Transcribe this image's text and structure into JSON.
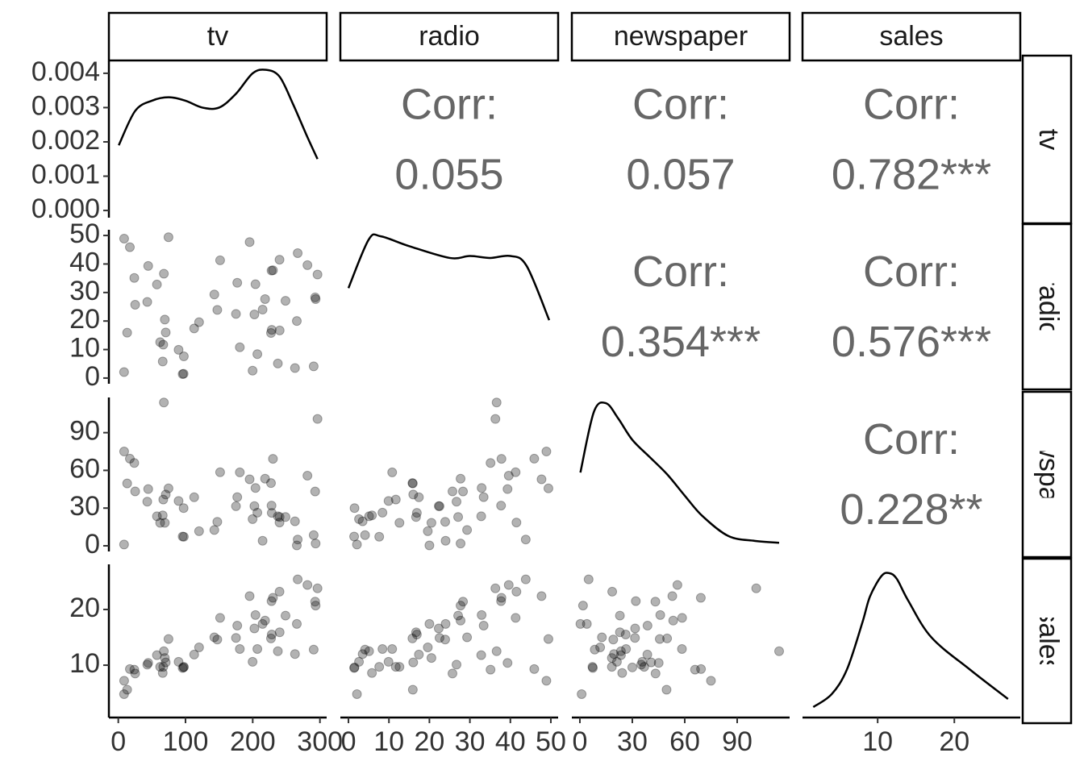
{
  "chart_data": {
    "type": "pairs",
    "variables": [
      "tv",
      "radio",
      "newspaper",
      "sales"
    ],
    "xlims": [
      [
        -14,
        310
      ],
      [
        -2,
        51.8
      ],
      [
        -4.6,
        120
      ],
      [
        0.2,
        28.6
      ]
    ],
    "xticks": [
      [
        0,
        100,
        200,
        300
      ],
      [
        0,
        10,
        20,
        30,
        40,
        50
      ],
      [
        0,
        30,
        60,
        90
      ],
      [
        10,
        20
      ]
    ],
    "ylims": [
      [
        -0.00021,
        0.00435
      ],
      [
        -2,
        52
      ],
      [
        -4.5,
        118
      ],
      [
        0.6,
        28.1
      ]
    ],
    "yticks": [
      [
        {
          "value": 0,
          "label": "0.000"
        },
        {
          "value": 0.001,
          "label": "0.001"
        },
        {
          "value": 0.002,
          "label": "0.002"
        },
        {
          "value": 0.003,
          "label": "0.003"
        },
        {
          "value": 0.004,
          "label": "0.004"
        }
      ],
      [
        0,
        10,
        20,
        30,
        40,
        50
      ],
      [
        0,
        30,
        60,
        90
      ],
      [
        10,
        20
      ]
    ],
    "columns": [
      [
        230.1,
        44.5,
        17.2,
        151.5,
        180.8,
        8.7,
        57.5,
        120.2,
        8.6,
        199.8,
        66.1,
        214.7,
        23.8,
        97.5,
        204.1,
        195.4,
        67.8,
        281.4,
        69.2,
        147.3,
        218.4,
        237.4,
        13.2,
        228.3,
        62.3,
        262.9,
        142.9,
        240.1,
        248.8,
        70.6,
        292.9,
        112.9,
        97.2,
        265.6,
        95.7,
        290.7,
        266.9,
        74.7,
        43.1,
        228,
        202.5,
        177,
        293.6,
        206.9,
        25.1,
        175.1,
        89.7,
        239.9,
        227.2,
        66.9,
        296.4
      ],
      [
        37.8,
        39.3,
        45.9,
        41.3,
        10.8,
        48.9,
        32.8,
        19.6,
        2.1,
        2.6,
        5.8,
        24,
        35.1,
        7.6,
        32.9,
        47.7,
        36.6,
        39.6,
        20.5,
        23.9,
        27.7,
        5.1,
        15.9,
        16.9,
        12.6,
        3.5,
        29.3,
        16.7,
        27.1,
        16,
        28.3,
        17.4,
        1.5,
        20,
        1.4,
        4.1,
        43.8,
        49.4,
        26.7,
        37.7,
        22.3,
        33.4,
        27.7,
        8.4,
        25.7,
        22.5,
        9.9,
        41.5,
        15.8,
        11.7,
        36.3
      ],
      [
        69.2,
        45.1,
        69.3,
        58.5,
        58.4,
        75,
        23.5,
        11.6,
        1,
        21.2,
        24.2,
        4,
        65.9,
        7.2,
        46,
        52.9,
        114,
        55.8,
        18.3,
        19.1,
        53.4,
        23.5,
        49.6,
        26.2,
        18.3,
        19.5,
        12.6,
        22.9,
        22.9,
        40.8,
        43.2,
        38.6,
        30,
        0.3,
        7.4,
        8.5,
        5,
        45.7,
        35.1,
        32,
        31.6,
        38.7,
        1.8,
        26.4,
        43.3,
        31.5,
        35.7,
        18.5,
        49.9,
        36.8,
        100.9
      ],
      [
        22.1,
        10.4,
        9.3,
        18.5,
        12.9,
        7.2,
        11.8,
        13.2,
        4.8,
        10.6,
        8.6,
        17.4,
        9.2,
        9.7,
        19,
        22.4,
        12.5,
        24.4,
        11.3,
        14.6,
        18,
        12.5,
        5.6,
        15.5,
        9.7,
        12,
        15,
        15.9,
        18.9,
        10.5,
        21.4,
        11.9,
        9.6,
        17.4,
        9.5,
        12.8,
        25.4,
        14.7,
        10.1,
        21.5,
        16.6,
        17.1,
        20.7,
        12.9,
        8.5,
        14.9,
        10.6,
        23.2,
        14.8,
        9.7,
        23.8
      ]
    ],
    "densities": [
      {
        "x": [
          0.7,
          25,
          50,
          75,
          100,
          125,
          150,
          175,
          200,
          220,
          240,
          260,
          280,
          296.4
        ],
        "y": [
          0.0019,
          0.0029,
          0.0032,
          0.0033,
          0.0032,
          0.003,
          0.003,
          0.0034,
          0.004,
          0.0041,
          0.0039,
          0.0031,
          0.0022,
          0.0015
        ]
      },
      {
        "x": [
          0,
          5,
          8,
          15,
          25,
          30,
          35,
          40,
          44,
          49.6
        ],
        "y": [
          0.0146,
          0.022,
          0.0225,
          0.021,
          0.0192,
          0.0195,
          0.0192,
          0.0195,
          0.018,
          0.0097
        ],
        "ylim": [
          0,
          0.0235
        ]
      },
      {
        "x": [
          0.3,
          8,
          15,
          22,
          30,
          40,
          50,
          60,
          70,
          85,
          100,
          114
        ],
        "y": [
          0.0082,
          0.0145,
          0.0154,
          0.0138,
          0.0116,
          0.0098,
          0.008,
          0.0058,
          0.0037,
          0.0016,
          0.0011,
          0.0009
        ],
        "ylim": [
          0,
          0.016
        ]
      },
      {
        "x": [
          1.6,
          4,
          6,
          8,
          9,
          10.5,
          11.5,
          12.5,
          14,
          17,
          22,
          27
        ],
        "y": [
          0.0072,
          0.016,
          0.033,
          0.065,
          0.083,
          0.097,
          0.099,
          0.095,
          0.08,
          0.055,
          0.033,
          0.0127
        ],
        "ylim": [
          0,
          0.105
        ]
      }
    ],
    "corr_title": "Corr:",
    "correlations": [
      [
        {
          "value": 0.055,
          "label": "0.055"
        },
        {
          "value": 0.057,
          "label": "0.057"
        },
        {
          "value": 0.782,
          "label": "0.782***"
        }
      ],
      [
        {
          "value": 0.354,
          "label": "0.354***"
        },
        {
          "value": 0.576,
          "label": "0.576***"
        }
      ],
      [
        {
          "value": 0.228,
          "label": "0.228**"
        }
      ]
    ]
  }
}
